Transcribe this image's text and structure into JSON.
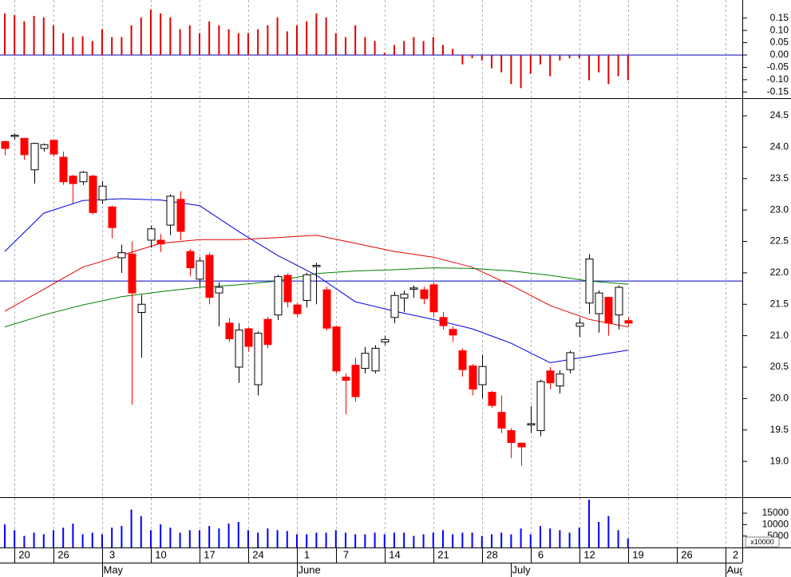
{
  "chart_data": [
    {
      "type": "bar",
      "color": "#e00000",
      "baseline_color": "#0000c0",
      "x": [
        0,
        1,
        2,
        3,
        4,
        5,
        6,
        7,
        8,
        9,
        10,
        11,
        12,
        13,
        14,
        15,
        16,
        17,
        18,
        19,
        20,
        21,
        22,
        23,
        24,
        25,
        26,
        27,
        28,
        29,
        30,
        31,
        32,
        33,
        34,
        35,
        36,
        37,
        38,
        39,
        40,
        41,
        42,
        43,
        44,
        45,
        46,
        47,
        48,
        49,
        50,
        51,
        52,
        53,
        54,
        55,
        56,
        57,
        58,
        59,
        60,
        61,
        62,
        63,
        64
      ],
      "values": [
        0.169,
        0.162,
        0.137,
        0.159,
        0.153,
        0.121,
        0.089,
        0.073,
        0.076,
        0.057,
        0.105,
        0.073,
        0.073,
        0.121,
        0.153,
        0.185,
        0.169,
        0.153,
        0.105,
        0.121,
        0.089,
        0.137,
        0.121,
        0.105,
        0.089,
        0.089,
        0.105,
        0.121,
        0.153,
        0.096,
        0.121,
        0.137,
        0.169,
        0.153,
        0.089,
        0.073,
        0.121,
        0.073,
        0.057,
        0.01,
        0.041,
        0.057,
        0.073,
        0.057,
        0.073,
        0.041,
        0.025,
        -0.038,
        -0.013,
        -0.022,
        -0.054,
        -0.07,
        -0.118,
        -0.134,
        -0.076,
        -0.038,
        -0.086,
        -0.022,
        -0.013,
        -0.013,
        -0.102,
        -0.07,
        -0.118,
        -0.086,
        -0.102
      ],
      "xlim": [
        -0.49,
        75.74
      ],
      "ylim": [
        -0.175,
        0.217
      ],
      "yticks": [
        {
          "value": 0.15,
          "label": "0.15"
        },
        {
          "value": 0.1,
          "label": "0.10"
        },
        {
          "value": 0.05,
          "label": "0.05"
        },
        {
          "value": 0,
          "label": "0.00"
        },
        {
          "value": -0.05,
          "label": "-0.05"
        },
        {
          "value": -0.1,
          "label": "-0.10"
        },
        {
          "value": -0.15,
          "label": "-0.15"
        }
      ]
    },
    {
      "type": "candlestick",
      "up_color": "#ffffff",
      "down_color": "#ff0000",
      "x": [
        0,
        1,
        2,
        3,
        4,
        5,
        6,
        7,
        8,
        9,
        10,
        11,
        12,
        13,
        14,
        15,
        16,
        17,
        18,
        19,
        20,
        21,
        22,
        23,
        24,
        25,
        26,
        27,
        28,
        29,
        30,
        31,
        32,
        33,
        34,
        35,
        36,
        37,
        38,
        39,
        40,
        41,
        42,
        43,
        44,
        45,
        46,
        47,
        48,
        49,
        50,
        51,
        52,
        53,
        54,
        55,
        56,
        57,
        58,
        59,
        60,
        61,
        62,
        63,
        64
      ],
      "open": [
        24.09,
        24.17,
        24.14,
        23.64,
        23.98,
        24.11,
        23.84,
        23.54,
        23.45,
        23.54,
        23.16,
        23.05,
        22.24,
        22.3,
        21.37,
        22.52,
        22.52,
        22.76,
        23.17,
        22.34,
        21.9,
        22.28,
        21.68,
        21.2,
        20.5,
        21.11,
        20.22,
        21.26,
        21.33,
        21.96,
        21.49,
        21.56,
        22.1,
        21.73,
        21.14,
        20.34,
        20.53,
        20.48,
        20.44,
        20.9,
        21.29,
        21.6,
        21.74,
        21.73,
        21.81,
        21.29,
        21.1,
        20.76,
        20.52,
        20.22,
        20.1,
        19.78,
        19.49,
        19.29,
        19.58,
        19.49,
        20.44,
        20.2,
        20.46,
        21.15,
        21.52,
        21.35,
        21.61,
        21.33,
        21.24
      ],
      "high": [
        24.1,
        24.22,
        24.15,
        24.07,
        24.06,
        24.12,
        23.93,
        23.56,
        23.62,
        23.56,
        23.46,
        23.07,
        22.45,
        22.5,
        21.65,
        22.75,
        22.62,
        23.25,
        23.3,
        22.38,
        22.25,
        22.32,
        21.85,
        21.28,
        21.2,
        21.13,
        21.07,
        21.3,
        21.97,
        21.99,
        21.52,
        22.0,
        22.16,
        21.78,
        21.16,
        20.4,
        20.65,
        20.82,
        20.85,
        21.0,
        21.7,
        21.72,
        21.8,
        21.78,
        21.85,
        21.38,
        21.15,
        20.8,
        20.55,
        20.7,
        20.12,
        20.05,
        19.53,
        19.3,
        19.88,
        20.3,
        20.5,
        20.45,
        20.76,
        21.28,
        22.3,
        21.72,
        21.62,
        21.8,
        21.3
      ],
      "low": [
        23.87,
        24.12,
        23.8,
        23.42,
        23.93,
        23.85,
        23.4,
        23.1,
        23.4,
        22.93,
        23.1,
        22.55,
        22.0,
        19.9,
        20.65,
        22.4,
        22.33,
        22.6,
        22.52,
        21.95,
        21.78,
        21.5,
        21.15,
        20.9,
        20.25,
        20.75,
        20.05,
        20.8,
        21.25,
        21.45,
        21.3,
        21.45,
        21.5,
        21.08,
        20.4,
        19.75,
        19.95,
        20.4,
        20.4,
        20.85,
        21.2,
        21.38,
        21.6,
        21.5,
        21.3,
        21.1,
        20.9,
        20.35,
        20.05,
        20.0,
        19.85,
        19.45,
        19.05,
        18.93,
        19.45,
        19.4,
        20.15,
        20.08,
        20.4,
        20.98,
        21.35,
        21.05,
        21.0,
        21.1,
        21.15
      ],
      "close": [
        23.98,
        24.19,
        23.88,
        24.06,
        24.04,
        23.89,
        23.45,
        23.42,
        23.6,
        22.96,
        23.38,
        22.72,
        22.32,
        21.68,
        21.5,
        22.7,
        22.46,
        23.22,
        22.66,
        22.08,
        22.19,
        21.61,
        21.77,
        20.95,
        21.09,
        20.83,
        21.04,
        20.86,
        21.94,
        21.54,
        21.35,
        21.97,
        22.12,
        21.12,
        20.44,
        20.29,
        20.03,
        20.72,
        20.8,
        20.94,
        21.64,
        21.66,
        21.76,
        21.59,
        21.38,
        21.16,
        21.01,
        20.46,
        20.15,
        20.51,
        19.89,
        19.53,
        19.3,
        19.23,
        19.6,
        20.27,
        20.25,
        20.39,
        20.73,
        21.2,
        22.22,
        21.68,
        21.2,
        21.77,
        21.2
      ],
      "lines": [
        {
          "color": "#0000e0",
          "x": [
            0,
            4,
            8,
            12,
            16,
            20,
            24,
            28,
            32,
            36,
            40,
            44,
            48,
            52,
            56,
            60,
            64
          ],
          "values": [
            22.34,
            22.95,
            23.15,
            23.18,
            23.16,
            23.07,
            22.66,
            22.28,
            21.96,
            21.54,
            21.39,
            21.26,
            21.11,
            20.88,
            20.57,
            20.67,
            20.77
          ]
        },
        {
          "color": "#e00000",
          "x": [
            0,
            4,
            8,
            12,
            16,
            20,
            24,
            28,
            32,
            36,
            40,
            44,
            48,
            52,
            56,
            60,
            64
          ],
          "values": [
            21.39,
            21.74,
            22.09,
            22.28,
            22.47,
            22.53,
            22.53,
            22.56,
            22.6,
            22.47,
            22.34,
            22.25,
            22.09,
            21.8,
            21.48,
            21.26,
            21.14
          ]
        },
        {
          "color": "#008000",
          "x": [
            0,
            4,
            8,
            12,
            16,
            20,
            24,
            28,
            32,
            36,
            40,
            44,
            48,
            52,
            56,
            60,
            64
          ],
          "values": [
            21.14,
            21.33,
            21.49,
            21.62,
            21.7,
            21.77,
            21.81,
            21.87,
            21.99,
            22.03,
            22.05,
            22.08,
            22.07,
            22.03,
            21.96,
            21.87,
            21.82
          ]
        }
      ],
      "hline": 21.87,
      "hline_color": "#0000c0",
      "xlim": [
        -0.49,
        75.74
      ],
      "ylim": [
        18.43,
        24.78
      ],
      "yticks": [
        {
          "value": 24.5,
          "label": "24.5"
        },
        {
          "value": 24,
          "label": "24.0"
        },
        {
          "value": 23.5,
          "label": "23.5"
        },
        {
          "value": 23,
          "label": "23.0"
        },
        {
          "value": 22.5,
          "label": "22.5"
        },
        {
          "value": 22,
          "label": "22.0"
        },
        {
          "value": 21.5,
          "label": "21.5"
        },
        {
          "value": 21,
          "label": "21.0"
        },
        {
          "value": 20.5,
          "label": "20.5"
        },
        {
          "value": 20,
          "label": "20.0"
        },
        {
          "value": 19.5,
          "label": "19.5"
        },
        {
          "value": 19,
          "label": "19.0"
        }
      ]
    },
    {
      "type": "bar",
      "color": "#0000ff",
      "unit_label": "x10000",
      "x": [
        0,
        1,
        2,
        3,
        4,
        5,
        6,
        7,
        8,
        9,
        10,
        11,
        12,
        13,
        14,
        15,
        16,
        17,
        18,
        19,
        20,
        21,
        22,
        23,
        24,
        25,
        26,
        27,
        28,
        29,
        30,
        31,
        32,
        33,
        34,
        35,
        36,
        37,
        38,
        39,
        40,
        41,
        42,
        43,
        44,
        45,
        46,
        47,
        48,
        49,
        50,
        51,
        52,
        53,
        54,
        55,
        56,
        57,
        58,
        59,
        60,
        61,
        62,
        63,
        64
      ],
      "values": [
        10100,
        7570,
        5050,
        6490,
        5770,
        7570,
        8660,
        10460,
        5770,
        6490,
        5770,
        8660,
        9380,
        16590,
        13710,
        7570,
        10100,
        8660,
        6490,
        7570,
        7570,
        9380,
        8300,
        10460,
        11180,
        7570,
        6490,
        8300,
        7570,
        7210,
        5770,
        5770,
        6490,
        6490,
        7570,
        6490,
        5770,
        5770,
        6490,
        5770,
        6490,
        6490,
        5050,
        5770,
        6490,
        7570,
        5770,
        6490,
        6490,
        5050,
        5770,
        6490,
        5770,
        8300,
        5770,
        9380,
        8300,
        7570,
        6490,
        8660,
        20920,
        11180,
        13710,
        7570,
        3970
      ],
      "xlim": [
        -0.49,
        75.74
      ],
      "ylim": [
        0,
        22000
      ],
      "yticks": [
        15000,
        10000,
        5000
      ],
      "xticks": [
        {
          "value": 1,
          "label": "20"
        },
        {
          "value": 5,
          "label": "26"
        },
        {
          "value": 10,
          "label": "3"
        },
        {
          "value": 15,
          "label": "10"
        },
        {
          "value": 20,
          "label": "17"
        },
        {
          "value": 25,
          "label": "24"
        },
        {
          "value": 30,
          "label": "1"
        },
        {
          "value": 34,
          "label": "7"
        },
        {
          "value": 39,
          "label": "14"
        },
        {
          "value": 44,
          "label": "21"
        },
        {
          "value": 49,
          "label": "28"
        },
        {
          "value": 54,
          "label": "6"
        },
        {
          "value": 59,
          "label": "12"
        },
        {
          "value": 64,
          "label": "19"
        },
        {
          "value": 69,
          "label": "26"
        },
        {
          "value": 74,
          "label": "2"
        }
      ],
      "month_ticks": [
        {
          "value": 10,
          "label": "May"
        },
        {
          "value": 30,
          "label": "June"
        },
        {
          "value": 52,
          "label": "July"
        },
        {
          "value": 74,
          "label": "August"
        }
      ]
    }
  ]
}
